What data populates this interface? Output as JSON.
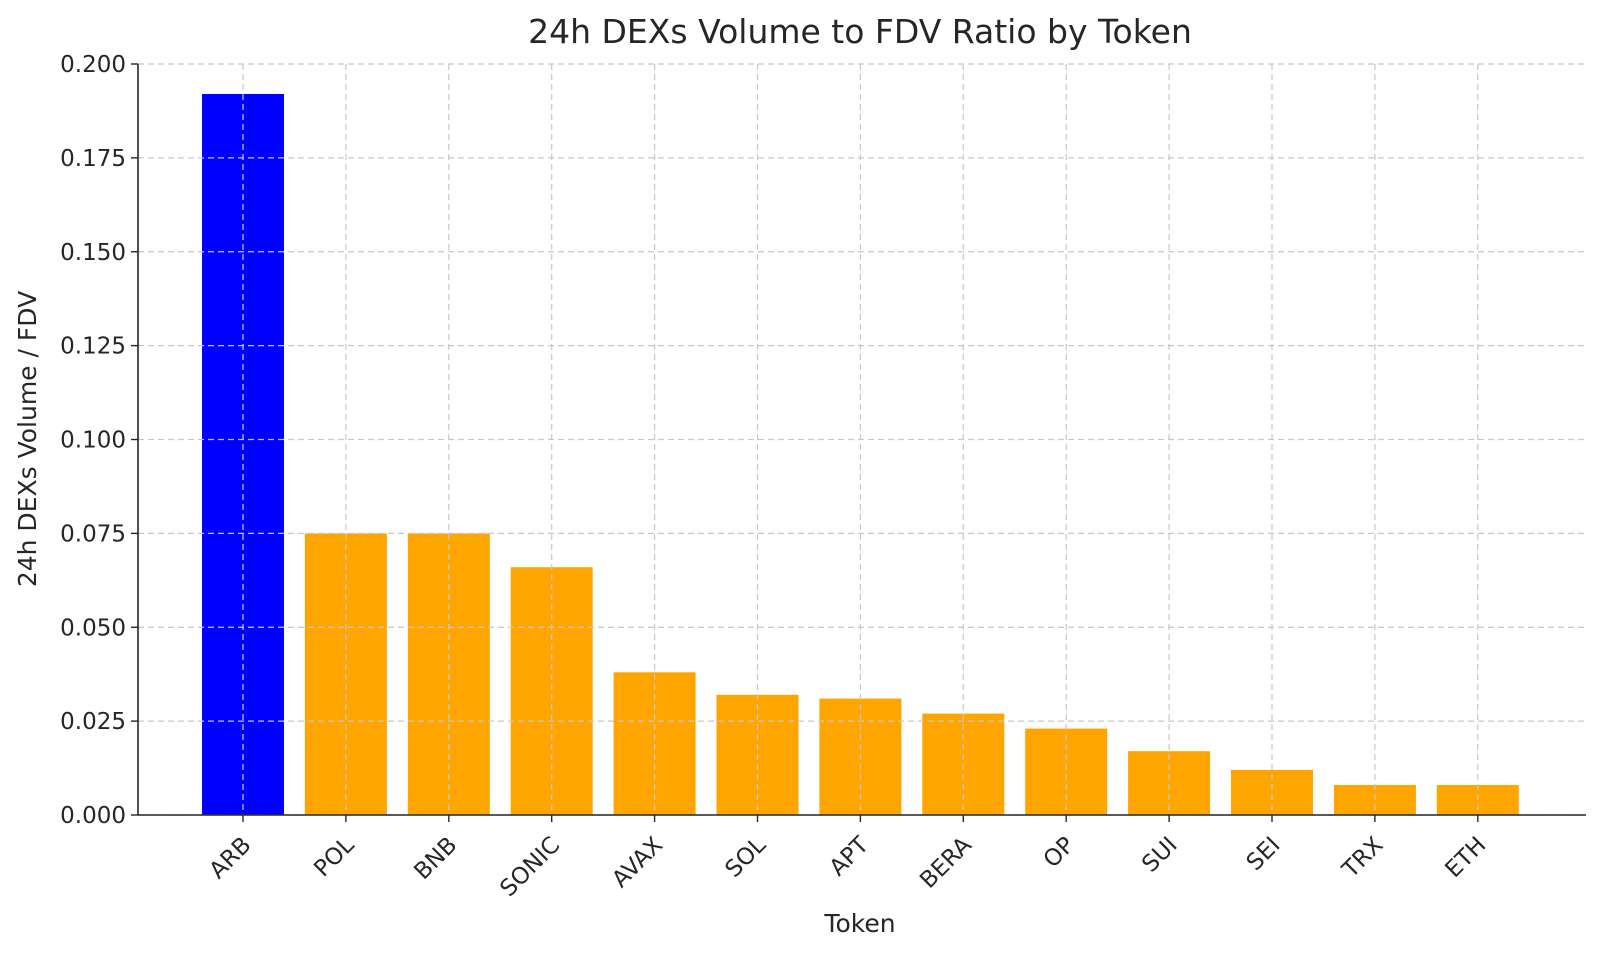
{
  "chart_data": {
    "type": "bar",
    "title": "24h DEXs Volume to FDV Ratio by Token",
    "xlabel": "Token",
    "ylabel": "24h DEXs Volume / FDV",
    "categories": [
      "ARB",
      "POL",
      "BNB",
      "SONIC",
      "AVAX",
      "SOL",
      "APT",
      "BERA",
      "OP",
      "SUI",
      "SEI",
      "TRX",
      "ETH"
    ],
    "values": [
      0.192,
      0.075,
      0.075,
      0.066,
      0.038,
      0.032,
      0.031,
      0.027,
      0.023,
      0.017,
      0.012,
      0.008,
      0.008
    ],
    "bar_colors": [
      "#0000ff",
      "#ffa500",
      "#ffa500",
      "#ffa500",
      "#ffa500",
      "#ffa500",
      "#ffa500",
      "#ffa500",
      "#ffa500",
      "#ffa500",
      "#ffa500",
      "#ffa500",
      "#ffa500"
    ],
    "ylim": [
      0,
      0.2
    ],
    "yticks": [
      "0.000",
      "0.025",
      "0.050",
      "0.075",
      "0.100",
      "0.125",
      "0.150",
      "0.175",
      "0.200"
    ],
    "ytick_values": [
      0,
      0.025,
      0.05,
      0.075,
      0.1,
      0.125,
      0.15,
      0.175,
      0.2
    ],
    "grid": true,
    "xtick_rotation": 45
  }
}
